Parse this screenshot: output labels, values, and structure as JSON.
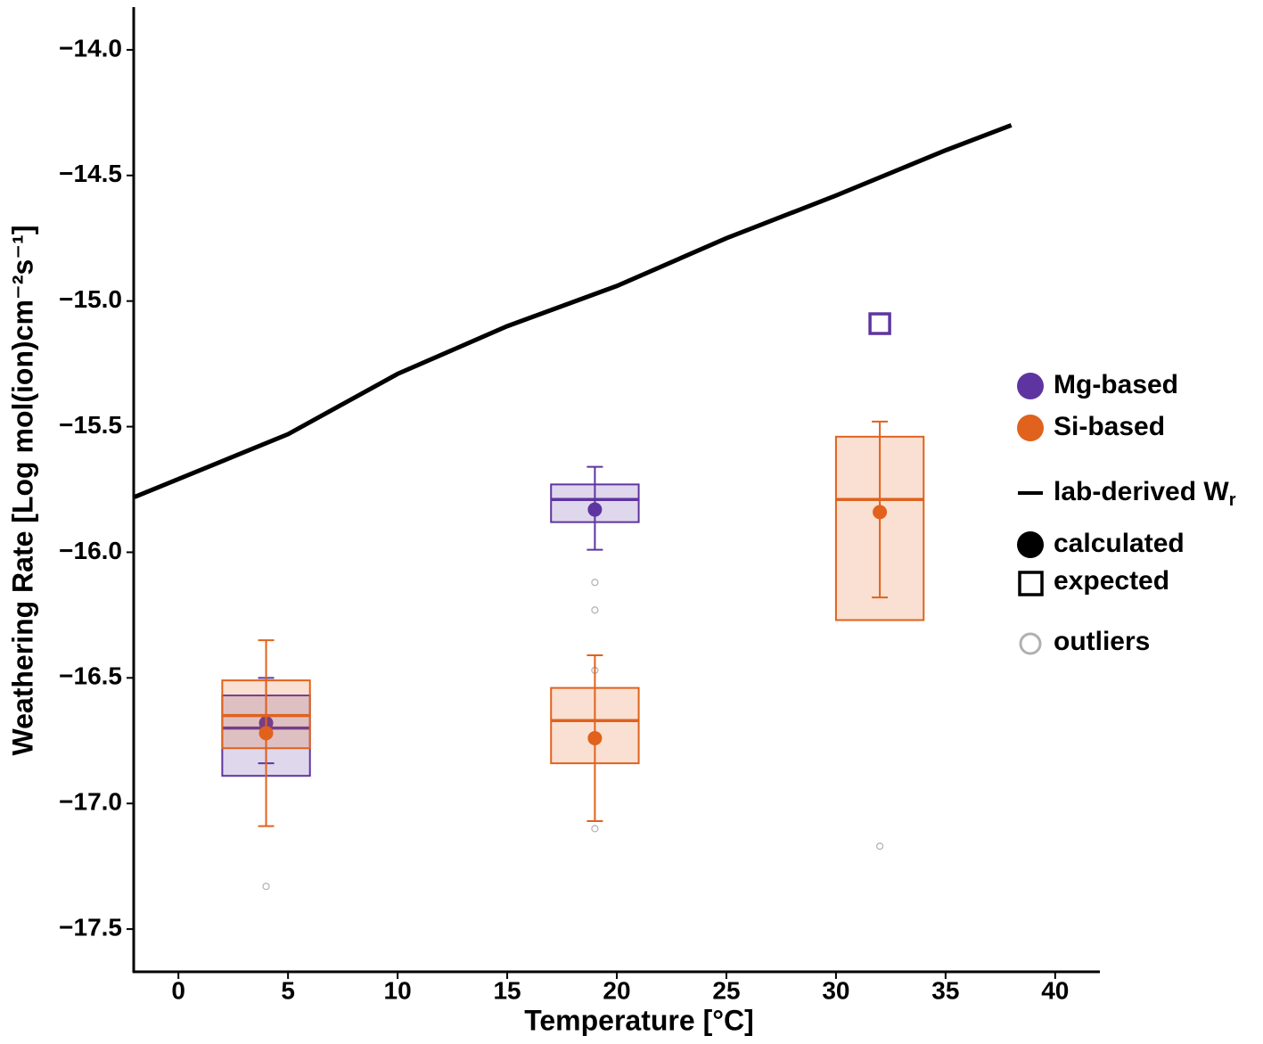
{
  "chart_data": {
    "type": "box",
    "x_label": "Temperature [°C]",
    "y_label": "Weathering Rate [Log mol(ion)cm⁻²s⁻¹]",
    "xlim": [
      -2,
      42
    ],
    "xticks": [
      0,
      5,
      10,
      15,
      20,
      25,
      30,
      35,
      40
    ],
    "ylim": [
      -17.67,
      -13.83
    ],
    "yticks": [
      {
        "value": -14.0,
        "label": "−14.0"
      },
      {
        "value": -14.5,
        "label": "−14.5"
      },
      {
        "value": -15.0,
        "label": "−15.0"
      },
      {
        "value": -15.5,
        "label": "−15.5"
      },
      {
        "value": -16.0,
        "label": "−16.0"
      },
      {
        "value": -16.5,
        "label": "−16.5"
      },
      {
        "value": -17.0,
        "label": "−17.0"
      },
      {
        "value": -17.5,
        "label": "−17.5"
      }
    ],
    "box_half_width": 2,
    "line": {
      "name": "lab-derived W",
      "name_subscript": "r",
      "color": "#000000",
      "x": [
        -2,
        5,
        10,
        15,
        20,
        25,
        30,
        35,
        38
      ],
      "y": [
        -15.78,
        -15.53,
        -15.29,
        -15.1,
        -14.94,
        -14.75,
        -14.58,
        -14.4,
        -14.3
      ]
    },
    "series": [
      {
        "name": "Mg-based",
        "color": "#5e35a0",
        "boxes": [
          {
            "x": 4,
            "q1": -16.89,
            "median": -16.7,
            "q3": -16.57,
            "mean": -16.68,
            "err_low": -16.84,
            "err_high": -16.5
          },
          {
            "x": 19,
            "q1": -15.88,
            "median": -15.79,
            "q3": -15.73,
            "mean": -15.83,
            "err_low": -15.99,
            "err_high": -15.66
          }
        ],
        "outliers": [
          {
            "x": 19,
            "value": -16.12
          },
          {
            "x": 19,
            "value": -16.23
          }
        ],
        "expected": [
          {
            "x": 32,
            "value": -15.09
          }
        ]
      },
      {
        "name": "Si-based",
        "color": "#e0621c",
        "boxes": [
          {
            "x": 4,
            "q1": -16.78,
            "median": -16.65,
            "q3": -16.51,
            "mean": -16.72,
            "err_low": -17.09,
            "err_high": -16.35
          },
          {
            "x": 19,
            "q1": -16.84,
            "median": -16.67,
            "q3": -16.54,
            "mean": -16.74,
            "err_low": -17.07,
            "err_high": -16.41
          },
          {
            "x": 32,
            "q1": -16.27,
            "median": -15.79,
            "q3": -15.54,
            "mean": -15.84,
            "err_low": -16.18,
            "err_high": -15.48
          }
        ],
        "outliers": [
          {
            "x": 4,
            "value": -17.33
          },
          {
            "x": 19,
            "value": -16.47
          },
          {
            "x": 19,
            "value": -17.1
          },
          {
            "x": 32,
            "value": -17.17
          }
        ],
        "expected": []
      }
    ],
    "outlier_color": "#b0b0b0",
    "legend_keys": {
      "calculated": "calculated",
      "expected": "expected",
      "outliers": "outliers"
    }
  }
}
